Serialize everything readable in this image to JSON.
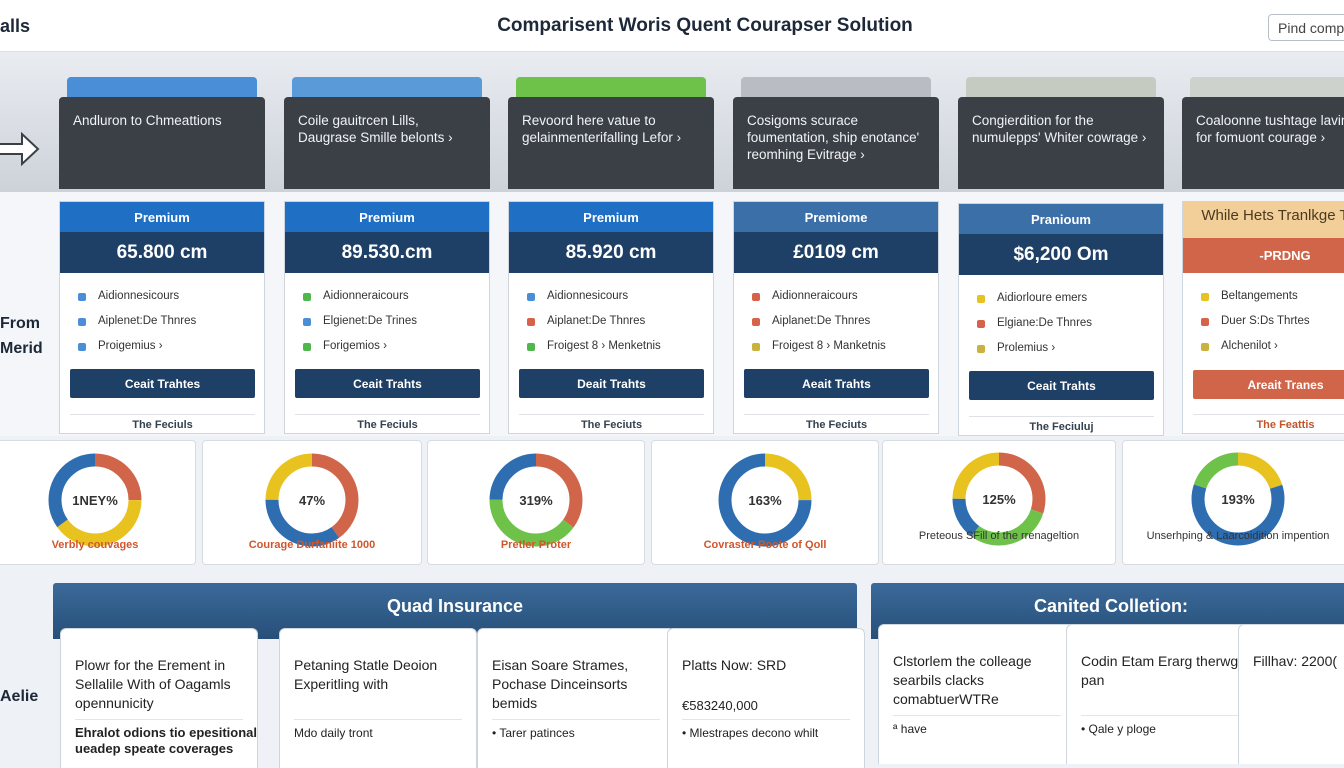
{
  "topbar": {
    "left_label": "alls",
    "title": "Comparisent Woris Quent Courapser Solution",
    "search_label": "Pind comp"
  },
  "header_cards": [
    {
      "text": "Andluron to Chmeattions",
      "tab_color": "#4a8ed8"
    },
    {
      "text": "Coile gauitrcen Lills, Daugrase Smille belonts  ›",
      "tab_color": "#5a9ad8"
    },
    {
      "text": "Revoord here vatue to gelainmenterifalling Lefor  ›",
      "tab_color": "#6ec24a"
    },
    {
      "text": "Cosigoms scurace foumentation, ship enotance' reomhing Evitrage  ›",
      "tab_color": "#b9bdc3"
    },
    {
      "text": "Congierdition for the numulepps' Whiter cowrage  ›",
      "tab_color": "#c6cbc2"
    },
    {
      "text": "Coaloonne tushtage lavinact for fomuont courage  ›",
      "tab_color": "#cdd2cc"
    }
  ],
  "side_labels": {
    "from": "From",
    "merid": "Merid",
    "aelie": "Aelie"
  },
  "pricing_plans": [
    {
      "tier": "Premium",
      "price": "65.800 cm",
      "head_color": "#1f6fc4",
      "features": [
        {
          "label": "Aidionnesicours",
          "color": "#4a8ed8"
        },
        {
          "label": "Aiplenet:De Thnres",
          "color": "#4a8ed8"
        },
        {
          "label": "Proigemius  ›",
          "color": "#4a8ed8"
        }
      ],
      "button": "Ceait Trahtes",
      "button_color": "#1e3f66",
      "footer": "The Feciuls"
    },
    {
      "tier": "Premium",
      "price": "89.530.cm",
      "head_color": "#1f6fc4",
      "features": [
        {
          "label": "Aidionneraicours",
          "color": "#4fb84a"
        },
        {
          "label": "Elgienet:De Trines",
          "color": "#4a8ed8"
        },
        {
          "label": "Forigemios  ›",
          "color": "#4fb84a"
        }
      ],
      "button": "Ceait Trahts",
      "button_color": "#1e3f66",
      "footer": "The Feciuls"
    },
    {
      "tier": "Premium",
      "price": "85.920 cm",
      "head_color": "#1f6fc4",
      "features": [
        {
          "label": "Aidionnesicours",
          "color": "#4a8ed8"
        },
        {
          "label": "Aiplanet:De Thnres",
          "color": "#d6624a"
        },
        {
          "label": "Froigest 8  ›  Menketnis",
          "color": "#4fb84a"
        }
      ],
      "button": "Deait Trahts",
      "button_color": "#1e3f66",
      "footer": "The Feciuts"
    },
    {
      "tier": "Premiome",
      "price": "£0109 cm",
      "head_color": "#3a6fa8",
      "features": [
        {
          "label": "Aidionneraicours",
          "color": "#d6624a"
        },
        {
          "label": "Aiplanet:De Thnres",
          "color": "#d6624a"
        },
        {
          "label": "Froigest 8  ›  Manketnis",
          "color": "#c9b23e"
        }
      ],
      "button": "Aeait Trahts",
      "button_color": "#1e3f66",
      "footer": "The Feciuts"
    },
    {
      "tier": "Pranioum",
      "price": "$6,200 Om",
      "head_color": "#3a6fa8",
      "features": [
        {
          "label": "Aidiorloure emers",
          "color": "#e8c21e"
        },
        {
          "label": "Elgiane:De Thnres",
          "color": "#d6624a"
        },
        {
          "label": "Prolemius  ›",
          "color": "#c9b23e"
        }
      ],
      "button": "Ceait Trahts",
      "button_color": "#1e3f66",
      "footer": "The Feciuluj"
    },
    {
      "tier": "While Hets Tranlkge Tyrp",
      "price": "-PRDNG",
      "head_color": "#f2cf98",
      "features": [
        {
          "label": "Beltangements",
          "color": "#e8c21e"
        },
        {
          "label": "Duer S:Ds Thrtes",
          "color": "#d6624a"
        },
        {
          "label": "Alchenilot  ›",
          "color": "#c9b23e"
        }
      ],
      "button": "Areait Tranes",
      "button_color": "#d0654a",
      "footer": "The Feattis"
    }
  ],
  "donuts": [
    {
      "percent": "1NEY%",
      "caption": "Verbly couvages",
      "caption_color": "#d0562c",
      "segments": [
        {
          "color": "#d0654a",
          "value": 0.25
        },
        {
          "color": "#e8c21e",
          "value": 0.4
        },
        {
          "color": "#2e6db0",
          "value": 0.35
        }
      ]
    },
    {
      "percent": "47%",
      "caption": "Courage Durfaniite 1000",
      "caption_color": "#d0562c",
      "segments": [
        {
          "color": "#d0654a",
          "value": 0.4
        },
        {
          "color": "#2e6db0",
          "value": 0.35
        },
        {
          "color": "#e8c21e",
          "value": 0.25
        }
      ]
    },
    {
      "percent": "319%",
      "caption": "Pretler Proter",
      "caption_color": "#d0562c",
      "segments": [
        {
          "color": "#d0654a",
          "value": 0.35
        },
        {
          "color": "#6ec24a",
          "value": 0.4
        },
        {
          "color": "#2e6db0",
          "value": 0.25
        }
      ]
    },
    {
      "percent": "163%",
      "caption": "Covraster Poote of Qoll",
      "caption_color": "#d0562c",
      "segments": [
        {
          "color": "#e8c21e",
          "value": 0.25
        },
        {
          "color": "#2e6db0",
          "value": 0.75
        }
      ]
    },
    {
      "percent": "125%",
      "caption": "Preteous SFill of the rrenageltion",
      "caption_color": "#333333",
      "segments": [
        {
          "color": "#d0654a",
          "value": 0.3
        },
        {
          "color": "#6ec24a",
          "value": 0.3
        },
        {
          "color": "#2e6db0",
          "value": 0.15
        },
        {
          "color": "#e8c21e",
          "value": 0.25
        }
      ]
    },
    {
      "percent": "193%",
      "caption": "Unserhping & Laarcoidition impention",
      "caption_color": "#333333",
      "segments": [
        {
          "color": "#e8c21e",
          "value": 0.2
        },
        {
          "color": "#2e6db0",
          "value": 0.6
        },
        {
          "color": "#6ec24a",
          "value": 0.2
        }
      ]
    }
  ],
  "panels": {
    "left_title": "Quad Insurance",
    "right_title": "Canited Colletion:"
  },
  "bottom_cards": [
    {
      "text": "Plowr for the Erement in Sellalile With of Oagamls opennunicity",
      "sub": "Ehralot odions tio epesitional ueadep speate coverages",
      "sub_bold": true
    },
    {
      "text": "Petaning Statle Deoion Experitling with",
      "sub": "Mdo daily tront",
      "sub_bold": false
    },
    {
      "text": "Eisan Soare Strames, Pochase Dinceinsorts bemids",
      "sub": "• Tarer patinces",
      "sub_bold": false
    },
    {
      "text": "Platts Now: SRD",
      "amount": "€583240,000",
      "sub": "• Mlestrapes decono whilt",
      "sub_bold": false
    },
    {
      "text": "Clstorlem the colleage searbils clacks comabtuerWTRe",
      "sub": "ª have",
      "sub_bold": false
    },
    {
      "text": "Codin Etam Erarg therwg pan",
      "sub": "• Qale y ploge",
      "sub_bold": false
    },
    {
      "text": "Fillhav: 2200(",
      "sub": "",
      "sub_bold": false
    }
  ]
}
